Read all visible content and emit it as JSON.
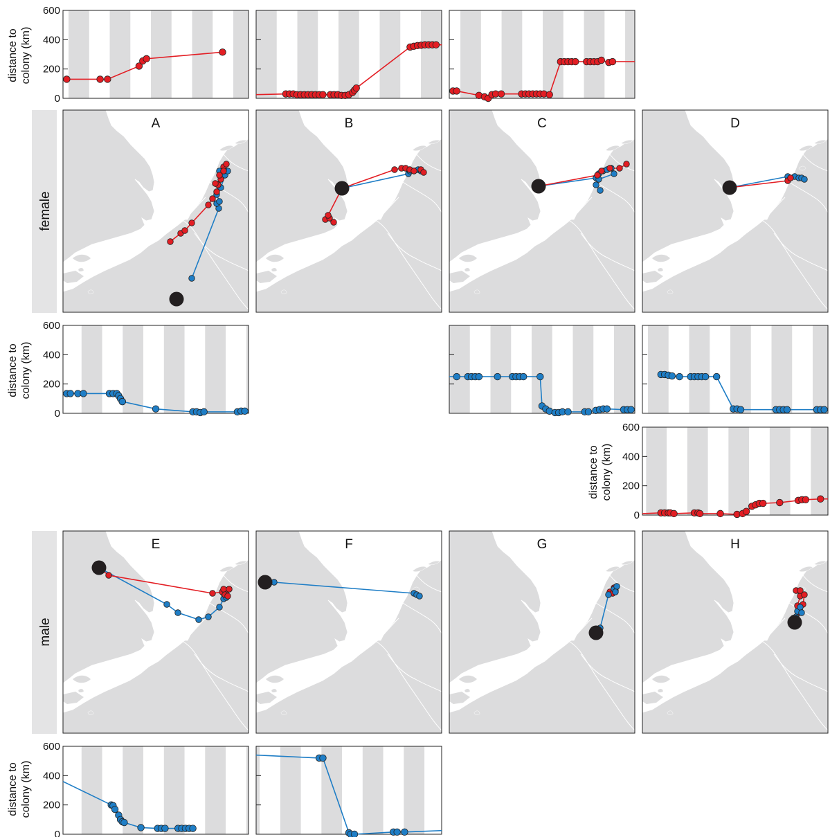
{
  "colors": {
    "outbound": "#e31e24",
    "return": "#1f7ec6",
    "land": "#dcdcdd",
    "night_band": "#dcdcdd",
    "colony": "#231f20",
    "sidebar": "#e4e4e5"
  },
  "row_labels": {
    "female": "female",
    "male": "male"
  },
  "axis": {
    "ylabel_line1": "distance to",
    "ylabel_line2": "colony (km)",
    "ytick_labels": [
      "600",
      "400",
      "200",
      "0"
    ]
  },
  "panels": {
    "A": "A",
    "B": "B",
    "C": "C",
    "D": "D",
    "E": "E",
    "F": "F",
    "G": "G",
    "H": "H"
  },
  "chart_data": [
    {
      "id": "A-out",
      "type": "line",
      "series_color": "outbound",
      "ylim": [
        0,
        600
      ],
      "labeled_y_axis": true,
      "x": [
        0.02,
        0.2,
        0.24,
        0.41,
        0.43,
        0.45,
        0.86
      ],
      "y": [
        130,
        130,
        130,
        220,
        255,
        270,
        315
      ]
    },
    {
      "id": "B-out",
      "type": "line",
      "series_color": "outbound",
      "ylim": [
        0,
        600
      ],
      "labeled_y_axis": false,
      "x": [
        0.0,
        0.16,
        0.18,
        0.2,
        0.22,
        0.24,
        0.26,
        0.28,
        0.3,
        0.32,
        0.34,
        0.36,
        0.4,
        0.42,
        0.44,
        0.46,
        0.48,
        0.5,
        0.52,
        0.53,
        0.54,
        0.83,
        0.85,
        0.87,
        0.89,
        0.91,
        0.93,
        0.95,
        0.97,
        1.0
      ],
      "y": [
        25,
        30,
        30,
        30,
        25,
        25,
        25,
        25,
        25,
        25,
        25,
        25,
        25,
        25,
        25,
        20,
        20,
        25,
        40,
        55,
        70,
        350,
        355,
        360,
        362,
        365,
        365,
        365,
        365,
        365
      ]
    },
    {
      "id": "C-out",
      "type": "line",
      "series_color": "outbound",
      "ylim": [
        0,
        600
      ],
      "labeled_y_axis": false,
      "x": [
        0.02,
        0.04,
        0.16,
        0.19,
        0.21,
        0.23,
        0.25,
        0.28,
        0.39,
        0.41,
        0.43,
        0.45,
        0.47,
        0.49,
        0.51,
        0.54,
        0.6,
        0.62,
        0.64,
        0.66,
        0.68,
        0.74,
        0.76,
        0.78,
        0.8,
        0.82,
        0.86,
        0.88,
        1.0
      ],
      "y": [
        50,
        50,
        20,
        10,
        0,
        25,
        30,
        30,
        30,
        30,
        30,
        30,
        30,
        30,
        30,
        25,
        250,
        250,
        250,
        250,
        250,
        250,
        250,
        250,
        250,
        260,
        245,
        250,
        250
      ]
    },
    {
      "id": "A-ret",
      "type": "line",
      "series_color": "return",
      "ylim": [
        0,
        600
      ],
      "labeled_y_axis": true,
      "x": [
        0.0,
        0.02,
        0.04,
        0.08,
        0.11,
        0.25,
        0.27,
        0.29,
        0.3,
        0.31,
        0.32,
        0.32,
        0.5,
        0.7,
        0.72,
        0.74,
        0.76,
        0.94,
        0.96,
        0.98,
        1.0
      ],
      "y": [
        135,
        135,
        135,
        135,
        135,
        135,
        135,
        135,
        120,
        100,
        80,
        80,
        30,
        10,
        10,
        5,
        10,
        10,
        15,
        15,
        15
      ]
    },
    {
      "id": "C-ret",
      "type": "line",
      "series_color": "return",
      "ylim": [
        0,
        600
      ],
      "labeled_y_axis": false,
      "x": [
        0.0,
        0.04,
        0.1,
        0.12,
        0.14,
        0.16,
        0.26,
        0.34,
        0.36,
        0.38,
        0.4,
        0.49,
        0.5,
        0.52,
        0.54,
        0.57,
        0.59,
        0.61,
        0.64,
        0.73,
        0.75,
        0.79,
        0.81,
        0.83,
        0.85,
        0.94,
        0.96,
        0.98,
        1.0
      ],
      "y": [
        250,
        250,
        250,
        250,
        250,
        250,
        250,
        250,
        250,
        250,
        250,
        250,
        50,
        30,
        15,
        5,
        5,
        10,
        10,
        10,
        10,
        20,
        25,
        30,
        30,
        25,
        25,
        25,
        25
      ]
    },
    {
      "id": "D-ret",
      "type": "line",
      "series_color": "return",
      "ylim": [
        0,
        600
      ],
      "labeled_y_axis": false,
      "x": [
        0.1,
        0.12,
        0.14,
        0.16,
        0.2,
        0.26,
        0.28,
        0.3,
        0.32,
        0.34,
        0.4,
        0.49,
        0.51,
        0.53,
        0.72,
        0.74,
        0.76,
        0.78,
        0.94,
        0.96,
        0.98,
        1.0
      ],
      "y": [
        265,
        265,
        260,
        255,
        250,
        250,
        250,
        250,
        250,
        250,
        250,
        30,
        30,
        25,
        25,
        25,
        25,
        25,
        25,
        25,
        25,
        25
      ]
    },
    {
      "id": "H-out",
      "type": "line",
      "series_color": "outbound",
      "ylim": [
        0,
        600
      ],
      "labeled_y_axis": true,
      "x": [
        0.0,
        0.1,
        0.12,
        0.14,
        0.15,
        0.17,
        0.28,
        0.3,
        0.31,
        0.42,
        0.51,
        0.54,
        0.56,
        0.59,
        0.61,
        0.63,
        0.65,
        0.74,
        0.84,
        0.86,
        0.88,
        0.96,
        1.0
      ],
      "y": [
        10,
        15,
        15,
        15,
        15,
        10,
        15,
        15,
        10,
        10,
        5,
        10,
        25,
        60,
        70,
        80,
        80,
        85,
        100,
        105,
        105,
        110,
        110
      ]
    },
    {
      "id": "E-ret",
      "type": "line",
      "series_color": "return",
      "ylim": [
        0,
        600
      ],
      "labeled_y_axis": true,
      "x": [
        0.0,
        0.26,
        0.27,
        0.28,
        0.3,
        0.31,
        0.32,
        0.33,
        0.42,
        0.51,
        0.53,
        0.55,
        0.62,
        0.64,
        0.66,
        0.68,
        0.7
      ],
      "y": [
        360,
        200,
        195,
        170,
        130,
        100,
        85,
        80,
        45,
        40,
        40,
        40,
        40,
        40,
        40,
        40,
        40
      ]
    },
    {
      "id": "F-ret",
      "type": "line",
      "series_color": "return",
      "ylim": [
        0,
        600
      ],
      "labeled_y_axis": false,
      "x": [
        0.0,
        0.34,
        0.36,
        0.5,
        0.51,
        0.53,
        0.74,
        0.76,
        0.8,
        1.0
      ],
      "y": [
        540,
        520,
        520,
        10,
        0,
        0,
        15,
        15,
        15,
        25
      ]
    }
  ]
}
